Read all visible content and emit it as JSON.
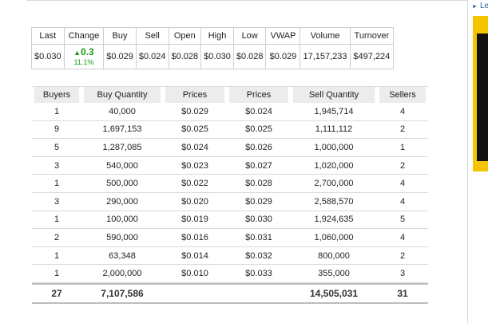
{
  "quote": {
    "headers": [
      "Last",
      "Change",
      "Buy",
      "Sell",
      "Open",
      "High",
      "Low",
      "VWAP",
      "Volume",
      "Turnover"
    ],
    "last": "$0.030",
    "change": {
      "value": "0.3",
      "percent": "11.1%",
      "arrow": "up-arrow-icon"
    },
    "buy": "$0.029",
    "sell": "$0.024",
    "open": "$0.028",
    "high": "$0.030",
    "low": "$0.028",
    "vwap": "$0.029",
    "volume": "17,157,233",
    "turnover": "$497,224",
    "positive_color": "#1a9a1a"
  },
  "depth": {
    "headers": [
      "Buyers",
      "Buy Quantity",
      "Prices",
      "Prices",
      "Sell Quantity",
      "Sellers"
    ],
    "rows": [
      [
        "1",
        "40,000",
        "$0.029",
        "$0.024",
        "1,945,714",
        "4"
      ],
      [
        "9",
        "1,697,153",
        "$0.025",
        "$0.025",
        "1,111,112",
        "2"
      ],
      [
        "5",
        "1,287,085",
        "$0.024",
        "$0.026",
        "1,000,000",
        "1"
      ],
      [
        "3",
        "540,000",
        "$0.023",
        "$0.027",
        "1,020,000",
        "2"
      ],
      [
        "1",
        "500,000",
        "$0.022",
        "$0.028",
        "2,700,000",
        "4"
      ],
      [
        "3",
        "290,000",
        "$0.020",
        "$0.029",
        "2,588,570",
        "4"
      ],
      [
        "1",
        "100,000",
        "$0.019",
        "$0.030",
        "1,924,635",
        "5"
      ],
      [
        "2",
        "590,000",
        "$0.016",
        "$0.031",
        "1,060,000",
        "4"
      ],
      [
        "1",
        "63,348",
        "$0.014",
        "$0.032",
        "800,000",
        "2"
      ],
      [
        "1",
        "2,000,000",
        "$0.010",
        "$0.033",
        "355,000",
        "3"
      ]
    ],
    "totals": {
      "buyers": "27",
      "buy_quantity": "7,107,586",
      "sell_quantity": "14,505,031",
      "sellers": "31"
    }
  },
  "sidebar": {
    "link_label": "Le",
    "banner_color": "#f5c400"
  }
}
